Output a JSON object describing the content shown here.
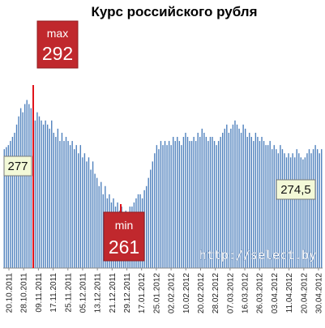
{
  "chart_data": {
    "type": "bar",
    "title": "Курс российского рубля",
    "xlabel": "",
    "ylabel": "",
    "ylim": [
      248,
      296
    ],
    "grid": false,
    "legend": "none",
    "bar_color": "#4f81bd",
    "marker_color": "#e0141c",
    "tick_labels": [
      "20.10.2011",
      "28.10.2011",
      "09.11.2011",
      "17.11.2011",
      "25.11.2011",
      "05.12.2011",
      "13.12.2011",
      "21.12.2011",
      "29.12.2011",
      "17.01.2012",
      "25.01.2012",
      "02.02.2012",
      "10.02.2012",
      "20.02.2012",
      "28.02.2012",
      "07.03.2012",
      "16.03.2012",
      "26.03.2012",
      "03.04.2012",
      "11.04.2012",
      "20.04.2012",
      "30.04.2012"
    ],
    "values": [
      277,
      277.5,
      278,
      279,
      280,
      281,
      283,
      285,
      287,
      286,
      288,
      289,
      288,
      287,
      286,
      284,
      286,
      285,
      284,
      283,
      284,
      283,
      282,
      284,
      281,
      280,
      282,
      279,
      281,
      279,
      280,
      279,
      278,
      279,
      277,
      278,
      276,
      278,
      275,
      276,
      274,
      275,
      272,
      274,
      271,
      270,
      268,
      269,
      266,
      268,
      265,
      266,
      264,
      265,
      263,
      264,
      262,
      263,
      261,
      262,
      261,
      263,
      263,
      264,
      265,
      266,
      266,
      265,
      267,
      268,
      270,
      272,
      274,
      276,
      278,
      277,
      279,
      278,
      279,
      278,
      279,
      278,
      280,
      279,
      280,
      279,
      278,
      280,
      281,
      280,
      279,
      279,
      280,
      279,
      281,
      280,
      282,
      281,
      280,
      279,
      280,
      280,
      279,
      278,
      279,
      280,
      281,
      282,
      283,
      281,
      282,
      283,
      284,
      283,
      282,
      281,
      283,
      282,
      280,
      281,
      280,
      279,
      281,
      280,
      279,
      280,
      279,
      278,
      278,
      279,
      277,
      278,
      277,
      276,
      278,
      277,
      276,
      275,
      276,
      275,
      276,
      275,
      277,
      276,
      275,
      274.5,
      275,
      276,
      277,
      276,
      277,
      278,
      277,
      276,
      277
    ],
    "annotations": [
      {
        "label": "max",
        "value": "292"
      },
      {
        "label": "min",
        "value": "261"
      },
      {
        "label": "",
        "value": "277"
      },
      {
        "label": "",
        "value": "274,5"
      }
    ],
    "watermark": "http://select.by"
  }
}
